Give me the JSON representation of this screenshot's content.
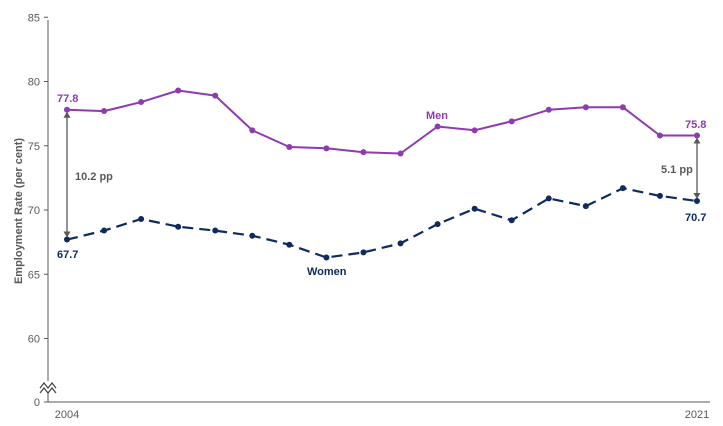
{
  "chart_data": {
    "type": "line",
    "ylabel": "Employment Rate (per cent)",
    "ylim": [
      0,
      85
    ],
    "axis_break": true,
    "yticks": [
      "0",
      "60",
      "65",
      "70",
      "75",
      "80",
      "85"
    ],
    "x": [
      2004,
      2005,
      2006,
      2007,
      2008,
      2009,
      2010,
      2011,
      2012,
      2013,
      2014,
      2015,
      2016,
      2017,
      2018,
      2019,
      2020,
      2021
    ],
    "xtick_labels": [
      "2004",
      "2021"
    ],
    "grid": false,
    "series": [
      {
        "name": "Men",
        "color": "#8e3ab1",
        "style": "solid",
        "values": [
          77.8,
          77.7,
          78.4,
          79.3,
          78.9,
          76.2,
          74.9,
          74.8,
          74.5,
          74.4,
          76.5,
          76.2,
          76.9,
          77.8,
          78.0,
          78.0,
          75.8,
          75.8
        ]
      },
      {
        "name": "Women",
        "color": "#0f2a5e",
        "style": "dashed",
        "values": [
          67.7,
          68.4,
          69.3,
          68.7,
          68.4,
          68.0,
          67.3,
          66.3,
          66.7,
          67.4,
          68.9,
          70.1,
          69.2,
          70.9,
          70.3,
          71.7,
          71.1,
          70.7
        ]
      }
    ],
    "annotations": {
      "men_start": "77.8",
      "women_start": "67.7",
      "men_end": "75.8",
      "women_end": "70.7",
      "gap_start": "10.2 pp",
      "gap_end": "5.1 pp"
    },
    "arrow_color": "#595959"
  }
}
